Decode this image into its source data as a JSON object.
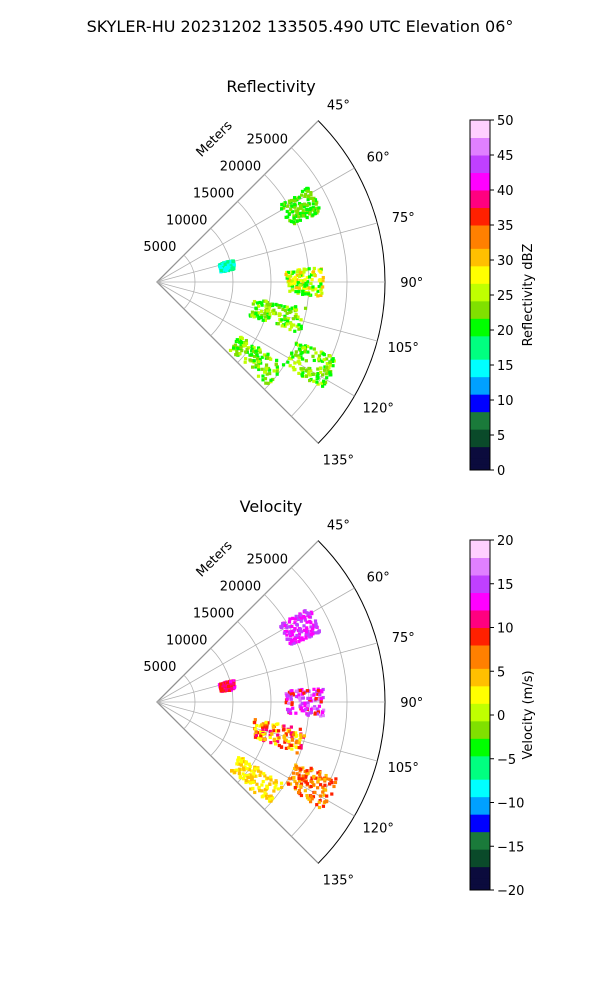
{
  "title": "SKYLER-HU  20231202  133505.490 UTC Elevation 06°",
  "chart_data": [
    {
      "type": "polar-sector",
      "title": "Reflectivity",
      "range_axis_label": "Meters",
      "range_ticks": [
        "5000",
        "10000",
        "15000",
        "20000",
        "25000"
      ],
      "range_values": [
        5000,
        10000,
        15000,
        20000,
        25000
      ],
      "rmax": 30000,
      "azimuth_ticks": [
        "45°",
        "60°",
        "75°",
        "90°",
        "105°",
        "120°",
        "135°"
      ],
      "azimuth_values": [
        45,
        60,
        75,
        90,
        105,
        120,
        135
      ],
      "azimuth_range": [
        45,
        135
      ],
      "grid": true,
      "colorbar": {
        "label": "Reflectivity dBZ",
        "range": [
          0,
          50
        ],
        "ticks": [
          "0",
          "5",
          "10",
          "15",
          "20",
          "25",
          "30",
          "35",
          "40",
          "45",
          "50"
        ],
        "tick_values": [
          0,
          5,
          10,
          15,
          20,
          25,
          30,
          35,
          40,
          45,
          50
        ]
      }
    },
    {
      "type": "polar-sector",
      "title": "Velocity",
      "range_axis_label": "Meters",
      "range_ticks": [
        "5000",
        "10000",
        "15000",
        "20000",
        "25000"
      ],
      "range_values": [
        5000,
        10000,
        15000,
        20000,
        25000
      ],
      "rmax": 30000,
      "azimuth_ticks": [
        "45°",
        "60°",
        "75°",
        "90°",
        "105°",
        "120°",
        "135°"
      ],
      "azimuth_values": [
        45,
        60,
        75,
        90,
        105,
        120,
        135
      ],
      "azimuth_range": [
        45,
        135
      ],
      "grid": true,
      "colorbar": {
        "label": "Velocity (m/s)",
        "range": [
          -20,
          20
        ],
        "ticks": [
          "−20",
          "−15",
          "−10",
          "−5",
          "0",
          "5",
          "10",
          "15",
          "20"
        ],
        "tick_values": [
          -20,
          -15,
          -10,
          -5,
          0,
          5,
          10,
          15,
          20
        ]
      }
    }
  ],
  "colormap": [
    "#0b0b3d",
    "#0a4a2a",
    "#1a7a3a",
    "#0000ff",
    "#00a0ff",
    "#00ffff",
    "#00ff80",
    "#00ff00",
    "#80e000",
    "#c0ff00",
    "#ffff00",
    "#ffc000",
    "#ff8000",
    "#ff2000",
    "#ff0080",
    "#ff00ff",
    "#c040ff",
    "#e080ff",
    "#ffd0ff"
  ]
}
